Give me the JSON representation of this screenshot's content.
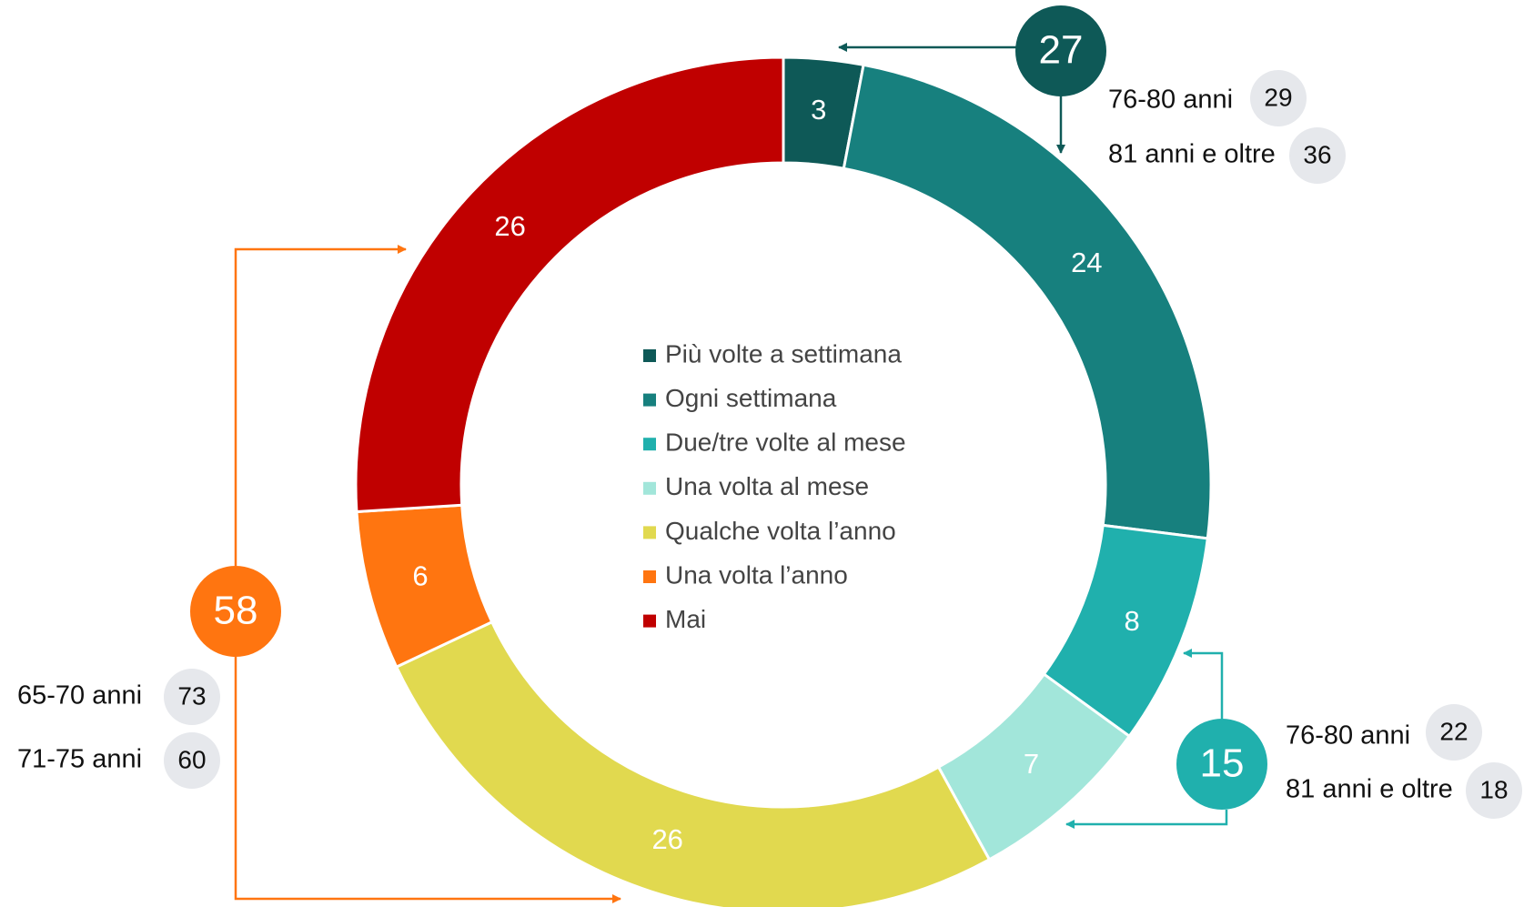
{
  "chart_data": {
    "type": "donut",
    "categories": [
      "Più volte a settimana",
      "Ogni settimana",
      "Due/tre volte al mese",
      "Una volta al mese",
      "Qualche volta l’anno",
      "Una volta l’anno",
      "Mai"
    ],
    "values": [
      3,
      24,
      8,
      7,
      26,
      6,
      26
    ],
    "colors": [
      "#0e5957",
      "#17807e",
      "#20b0ad",
      "#a2e6da",
      "#e1d94f",
      "#ff7510",
      "#c00000"
    ],
    "legend": "center",
    "annotations": [
      {
        "value": 27,
        "color": "#0e5957",
        "items": [
          {
            "label": "76-80 anni",
            "value": 29
          },
          {
            "label": "81 anni e oltre",
            "value": 36
          }
        ]
      },
      {
        "value": 15,
        "color": "#20b0ad",
        "items": [
          {
            "label": "76-80 anni",
            "value": 22
          },
          {
            "label": "81 anni e oltre",
            "value": 18
          }
        ]
      },
      {
        "value": 58,
        "color": "#ff7510",
        "items": [
          {
            "label": "65-70 anni",
            "value": 73
          },
          {
            "label": "71-75 anni",
            "value": 60
          }
        ]
      }
    ]
  }
}
